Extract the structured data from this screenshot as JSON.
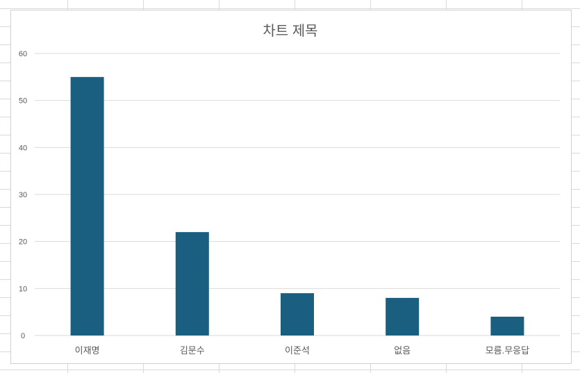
{
  "chart_data": {
    "type": "bar",
    "title": "차트 제목",
    "categories": [
      "이재명",
      "김문수",
      "이준석",
      "없음",
      "모름.무응답"
    ],
    "values": [
      55,
      22,
      9,
      8,
      4
    ],
    "ylim": [
      0,
      60
    ],
    "yticks": [
      0,
      10,
      20,
      30,
      40,
      50,
      60
    ],
    "grid": true,
    "legend": "none",
    "bar_color": "#1b5f80"
  }
}
